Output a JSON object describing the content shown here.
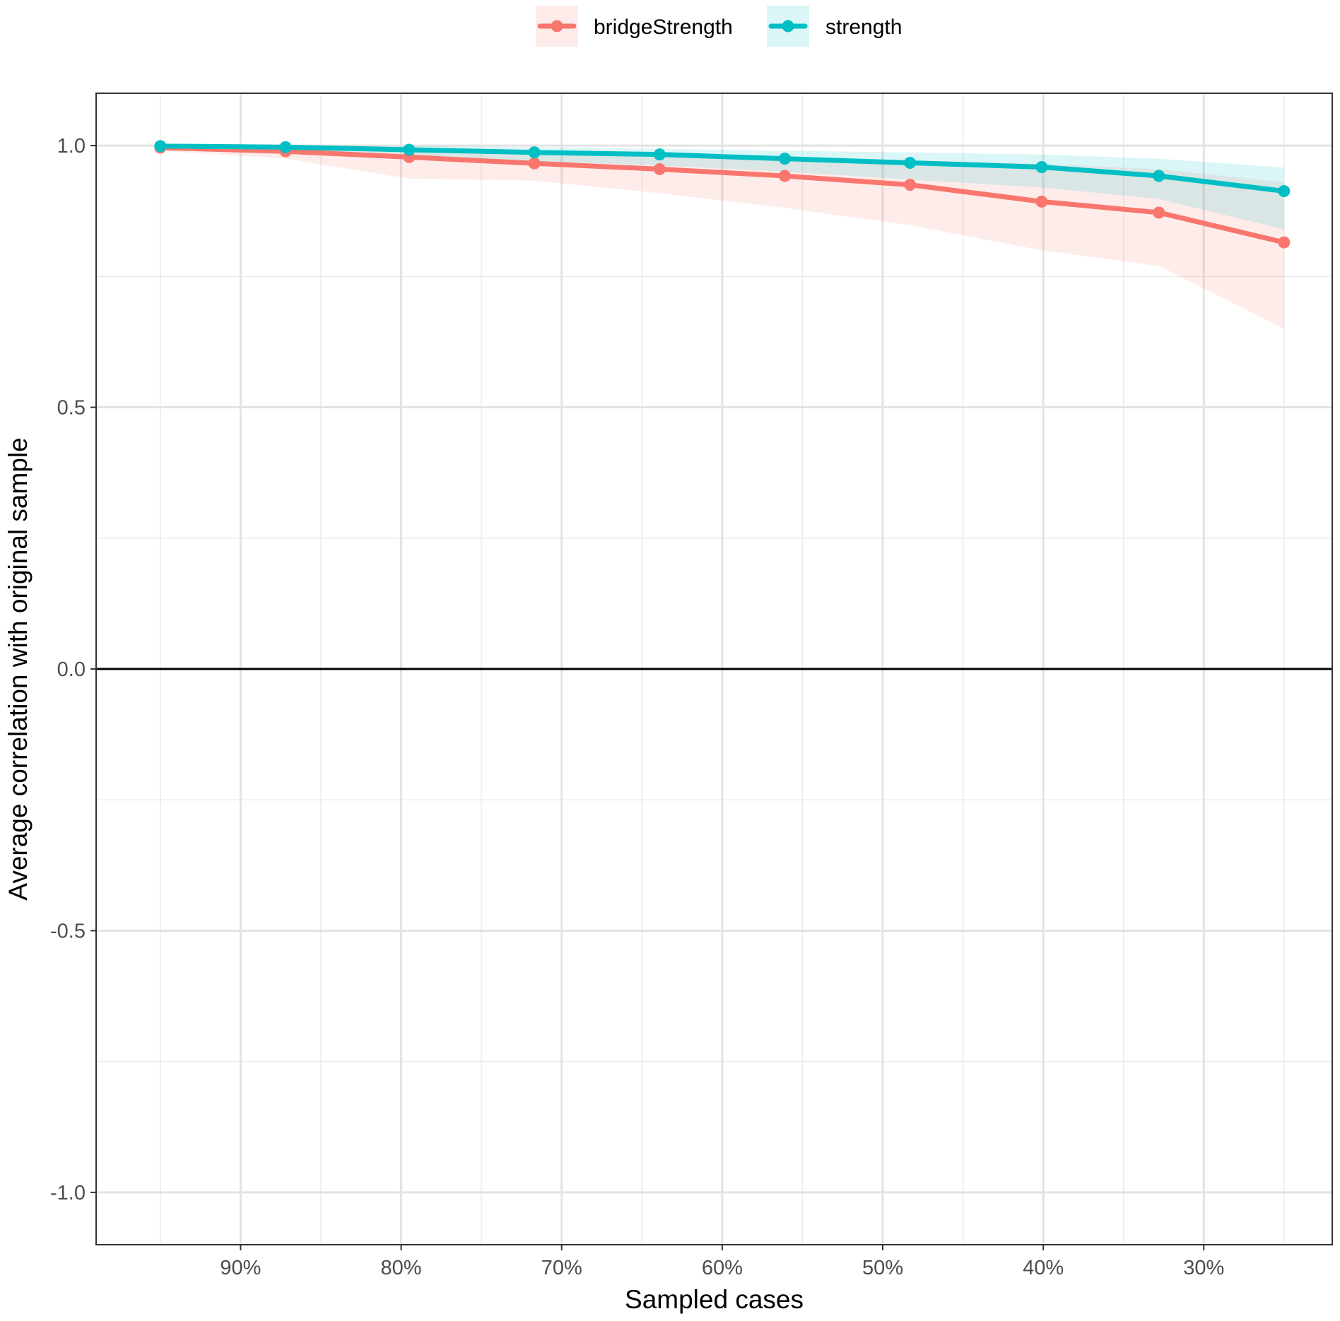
{
  "chart_data": {
    "type": "line",
    "title": "",
    "xlabel": "Sampled cases",
    "ylabel": "Average correlation with original sample",
    "x_axis": {
      "reversed": true,
      "unit": "percent",
      "lim": [
        99,
        22
      ],
      "ticks": [
        90,
        80,
        70,
        60,
        50,
        40,
        30
      ],
      "tick_labels": [
        "90%",
        "80%",
        "70%",
        "60%",
        "50%",
        "40%",
        "30%"
      ],
      "minor_ticks": [
        95,
        85,
        75,
        65,
        55,
        45,
        35,
        25
      ]
    },
    "y_axis": {
      "lim": [
        -1.1,
        1.1
      ],
      "ticks": [
        1.0,
        0.5,
        0.0,
        -0.5,
        -1.0
      ],
      "tick_labels": [
        "1.0",
        "0.5",
        "0.0",
        "-0.5",
        "-1.0"
      ],
      "minor_ticks": [
        0.75,
        0.25,
        -0.25,
        -0.75
      ]
    },
    "reference_line": {
      "y": 0
    },
    "grid": true,
    "legend": {
      "position": "top",
      "entries": [
        "bridgeStrength",
        "strength"
      ]
    },
    "x": [
      95,
      87.2,
      79.5,
      71.7,
      63.9,
      56.1,
      48.3,
      40.1,
      32.8,
      25
    ],
    "series": [
      {
        "name": "bridgeStrength",
        "color": "#F8766D",
        "band_color": "#FDE7E5",
        "values": [
          0.996,
          0.989,
          0.978,
          0.966,
          0.955,
          0.942,
          0.925,
          0.893,
          0.872,
          0.815
        ],
        "lower": [
          0.99,
          0.975,
          0.937,
          0.933,
          0.909,
          0.881,
          0.848,
          0.8,
          0.77,
          0.65
        ],
        "upper": [
          1.0,
          0.997,
          0.993,
          0.987,
          0.983,
          0.978,
          0.972,
          0.965,
          0.955,
          0.93
        ]
      },
      {
        "name": "strength",
        "color": "#00BFC4",
        "band_color": "#DDF3F3",
        "values": [
          0.999,
          0.997,
          0.992,
          0.987,
          0.983,
          0.975,
          0.967,
          0.959,
          0.942,
          0.913
        ],
        "lower": [
          0.995,
          0.99,
          0.98,
          0.97,
          0.962,
          0.95,
          0.935,
          0.92,
          0.898,
          0.84
        ],
        "upper": [
          1.0,
          1.0,
          0.999,
          0.997,
          0.994,
          0.99,
          0.987,
          0.983,
          0.975,
          0.958
        ]
      }
    ]
  }
}
